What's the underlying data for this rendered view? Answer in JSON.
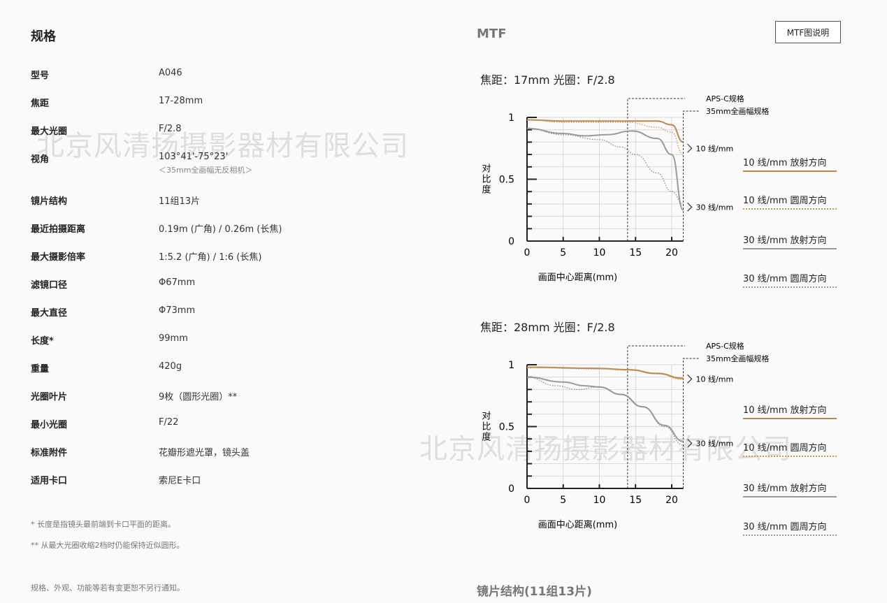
{
  "specs": {
    "title": "规格",
    "rows": [
      {
        "label": "型号",
        "value": "A046"
      },
      {
        "label": "焦距",
        "value": "17-28mm"
      },
      {
        "label": "最大光圈",
        "value": "F/2.8"
      },
      {
        "label": "视角",
        "value": "103°41'-75°23'",
        "sub": "＜35mm全画幅无反相机＞"
      },
      {
        "label": "镜片结构",
        "value": "11组13片"
      },
      {
        "label": "最近拍摄距离",
        "value": "0.19m (广角) / 0.26m (长焦)"
      },
      {
        "label": "最大摄影倍率",
        "value": "1:5.2 (广角) / 1:6 (长焦)"
      },
      {
        "label": "滤镜口径",
        "value": "Φ67mm"
      },
      {
        "label": "最大直径",
        "value": "Φ73mm"
      },
      {
        "label": "长度*",
        "value": "99mm"
      },
      {
        "label": "重量",
        "value": "420g"
      },
      {
        "label": "光圈叶片",
        "value": "9枚（圆形光圈）**"
      },
      {
        "label": "最小光圈",
        "value": "F/22"
      },
      {
        "label": "标准附件",
        "value": "花瓣形遮光罩，镜头盖"
      },
      {
        "label": "适用卡口",
        "value": "索尼E卡口"
      }
    ],
    "notes": [
      "* 长度是指镜头最前端到卡口平面的距离。",
      "** 从最大光圈收缩2档时仍能保持近似圆形。"
    ],
    "disclaimer": "规格、外观、功能等若有变更恕不另行通知。"
  },
  "mtf": {
    "title": "MTF",
    "explain_button": "MTF图说明",
    "legend": [
      {
        "label": "10 线/mm  放射方向",
        "color": "#b8894f",
        "style": "solid"
      },
      {
        "label": "10 线/mm  圆周方向",
        "color": "#c99a5e",
        "style": "dotted"
      },
      {
        "label": "30 线/mm  放射方向",
        "color": "#9a9a9a",
        "style": "solid"
      },
      {
        "label": "30 线/mm  圆周方向",
        "color": "#9a9a9a",
        "style": "dotted"
      }
    ]
  },
  "bottom_title": "镜片结构(11组13片)",
  "watermark": "北京风清扬摄影器材有限公司",
  "chart_data": [
    {
      "type": "line",
      "title": "焦距：17mm  光圈：F/2.8",
      "xlabel": "画面中心距离(mm)",
      "ylabel": "对比度",
      "xlim": [
        0,
        21.6
      ],
      "ylim": [
        0,
        1
      ],
      "xticks": [
        "0",
        "5",
        "10",
        "15",
        "20"
      ],
      "yticks": [
        "0",
        "0.5",
        "1"
      ],
      "grid": true,
      "annotations": {
        "apsc": "APS-C规格",
        "apsc_x": 13.9,
        "ff": "35mm全画幅规格",
        "ff_x": 21.6,
        "l10": "10 线/mm",
        "l30": "30 线/mm"
      },
      "series": [
        {
          "name": "10 线/mm  放射方向",
          "x": [
            0,
            5,
            10,
            15,
            18,
            20,
            21.6
          ],
          "y": [
            0.98,
            0.97,
            0.97,
            0.97,
            0.97,
            0.94,
            0.8
          ]
        },
        {
          "name": "10 线/mm  圆周方向",
          "x": [
            0,
            5,
            10,
            14,
            18,
            20,
            21.6
          ],
          "y": [
            0.98,
            0.96,
            0.96,
            0.96,
            0.92,
            0.88,
            0.7
          ]
        },
        {
          "name": "30 线/mm  放射方向",
          "x": [
            0,
            5,
            8,
            11,
            14.5,
            18,
            20,
            21.6
          ],
          "y": [
            0.91,
            0.87,
            0.85,
            0.86,
            0.89,
            0.83,
            0.7,
            0.25
          ]
        },
        {
          "name": "30 线/mm  圆周方向",
          "x": [
            0,
            5,
            10,
            13,
            15,
            18,
            20,
            21.6
          ],
          "y": [
            0.91,
            0.86,
            0.82,
            0.76,
            0.7,
            0.55,
            0.4,
            0.3
          ]
        }
      ]
    },
    {
      "type": "line",
      "title": "焦距：28mm  光圈：F/2.8",
      "xlabel": "画面中心距离(mm)",
      "ylabel": "对比度",
      "xlim": [
        0,
        21.6
      ],
      "ylim": [
        0,
        1
      ],
      "xticks": [
        "0",
        "5",
        "10",
        "15",
        "20"
      ],
      "yticks": [
        "0",
        "0.5",
        "1"
      ],
      "grid": true,
      "annotations": {
        "apsc": "APS-C规格",
        "apsc_x": 13.9,
        "ff": "35mm全画幅规格",
        "ff_x": 21.6,
        "l10": "10 线/mm",
        "l30": "30 线/mm"
      },
      "series": [
        {
          "name": "10 线/mm  放射方向",
          "x": [
            0,
            10,
            14,
            18,
            21.6
          ],
          "y": [
            0.98,
            0.97,
            0.96,
            0.93,
            0.89
          ]
        },
        {
          "name": "10 线/mm  圆周方向",
          "x": [
            0,
            10,
            14,
            18,
            21.6
          ],
          "y": [
            0.975,
            0.965,
            0.955,
            0.925,
            0.88
          ]
        },
        {
          "name": "30 线/mm  放射方向",
          "x": [
            0,
            5,
            8,
            10,
            13,
            16,
            19,
            21.6
          ],
          "y": [
            0.9,
            0.86,
            0.83,
            0.82,
            0.76,
            0.66,
            0.51,
            0.38
          ]
        },
        {
          "name": "30 线/mm  圆周方向",
          "x": [
            0,
            4,
            7,
            10,
            13,
            16,
            19,
            21.6
          ],
          "y": [
            0.9,
            0.83,
            0.8,
            0.82,
            0.76,
            0.66,
            0.5,
            0.35
          ]
        }
      ]
    }
  ]
}
